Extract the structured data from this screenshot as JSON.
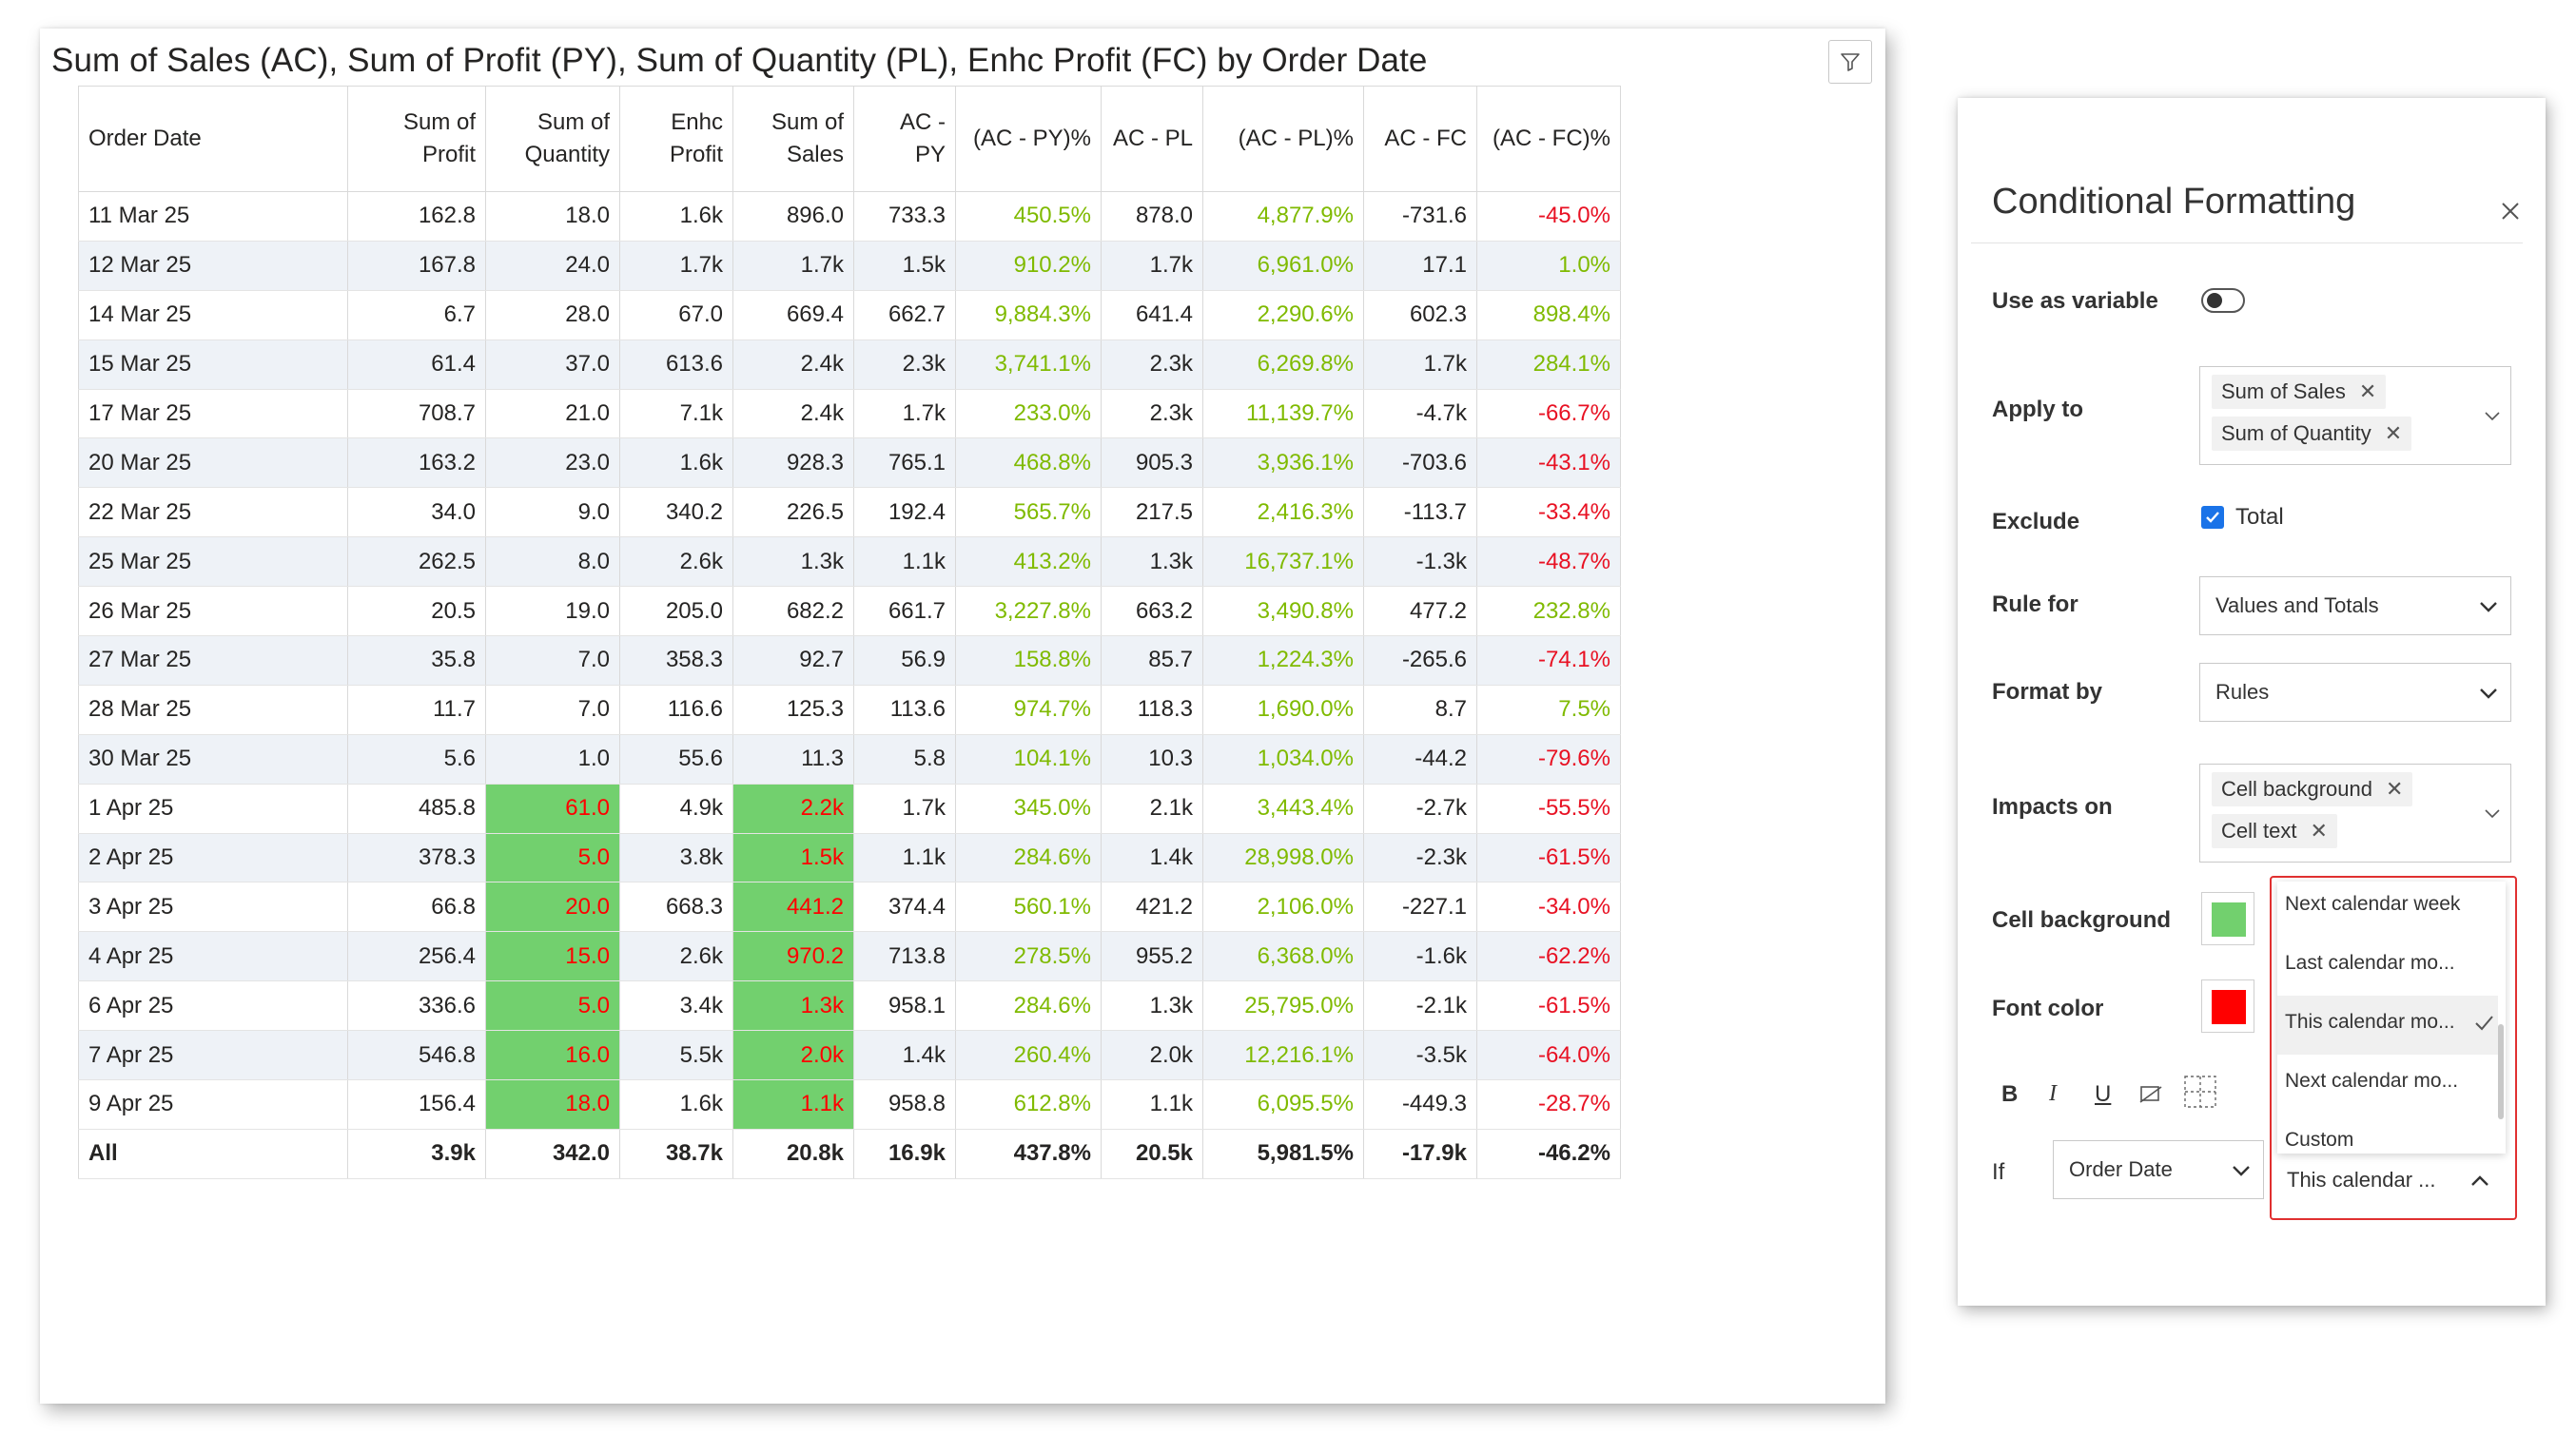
{
  "report": {
    "title": "Sum of Sales (AC), Sum of Profit (PY), Sum of Quantity (PL), Enhc Profit (FC) by Order Date",
    "filter_icon": "filter-icon",
    "columns": [
      "Order Date",
      "Sum of Profit",
      "Sum of Quantity",
      "Enhc Profit",
      "Sum of Sales",
      "AC - PY",
      "(AC - PY)%",
      "AC - PL",
      "(AC - PL)%",
      "AC - FC",
      "(AC - FC)%"
    ],
    "rows": [
      {
        "date": "11 Mar 25",
        "profit": "162.8",
        "qty": "18.0",
        "enhc": "1.6k",
        "sales": "896.0",
        "acpy": "733.3",
        "acpyp": "450.5%",
        "acpl": "878.0",
        "acplp": "4,877.9%",
        "acfc": "-731.6",
        "acfcp": "-45.0%"
      },
      {
        "date": "12 Mar 25",
        "profit": "167.8",
        "qty": "24.0",
        "enhc": "1.7k",
        "sales": "1.7k",
        "acpy": "1.5k",
        "acpyp": "910.2%",
        "acpl": "1.7k",
        "acplp": "6,961.0%",
        "acfc": "17.1",
        "acfcp": "1.0%"
      },
      {
        "date": "14 Mar 25",
        "profit": "6.7",
        "qty": "28.0",
        "enhc": "67.0",
        "sales": "669.4",
        "acpy": "662.7",
        "acpyp": "9,884.3%",
        "acpl": "641.4",
        "acplp": "2,290.6%",
        "acfc": "602.3",
        "acfcp": "898.4%"
      },
      {
        "date": "15 Mar 25",
        "profit": "61.4",
        "qty": "37.0",
        "enhc": "613.6",
        "sales": "2.4k",
        "acpy": "2.3k",
        "acpyp": "3,741.1%",
        "acpl": "2.3k",
        "acplp": "6,269.8%",
        "acfc": "1.7k",
        "acfcp": "284.1%"
      },
      {
        "date": "17 Mar 25",
        "profit": "708.7",
        "qty": "21.0",
        "enhc": "7.1k",
        "sales": "2.4k",
        "acpy": "1.7k",
        "acpyp": "233.0%",
        "acpl": "2.3k",
        "acplp": "11,139.7%",
        "acfc": "-4.7k",
        "acfcp": "-66.7%"
      },
      {
        "date": "20 Mar 25",
        "profit": "163.2",
        "qty": "23.0",
        "enhc": "1.6k",
        "sales": "928.3",
        "acpy": "765.1",
        "acpyp": "468.8%",
        "acpl": "905.3",
        "acplp": "3,936.1%",
        "acfc": "-703.6",
        "acfcp": "-43.1%"
      },
      {
        "date": "22 Mar 25",
        "profit": "34.0",
        "qty": "9.0",
        "enhc": "340.2",
        "sales": "226.5",
        "acpy": "192.4",
        "acpyp": "565.7%",
        "acpl": "217.5",
        "acplp": "2,416.3%",
        "acfc": "-113.7",
        "acfcp": "-33.4%"
      },
      {
        "date": "25 Mar 25",
        "profit": "262.5",
        "qty": "8.0",
        "enhc": "2.6k",
        "sales": "1.3k",
        "acpy": "1.1k",
        "acpyp": "413.2%",
        "acpl": "1.3k",
        "acplp": "16,737.1%",
        "acfc": "-1.3k",
        "acfcp": "-48.7%"
      },
      {
        "date": "26 Mar 25",
        "profit": "20.5",
        "qty": "19.0",
        "enhc": "205.0",
        "sales": "682.2",
        "acpy": "661.7",
        "acpyp": "3,227.8%",
        "acpl": "663.2",
        "acplp": "3,490.8%",
        "acfc": "477.2",
        "acfcp": "232.8%"
      },
      {
        "date": "27 Mar 25",
        "profit": "35.8",
        "qty": "7.0",
        "enhc": "358.3",
        "sales": "92.7",
        "acpy": "56.9",
        "acpyp": "158.8%",
        "acpl": "85.7",
        "acplp": "1,224.3%",
        "acfc": "-265.6",
        "acfcp": "-74.1%"
      },
      {
        "date": "28 Mar 25",
        "profit": "11.7",
        "qty": "7.0",
        "enhc": "116.6",
        "sales": "125.3",
        "acpy": "113.6",
        "acpyp": "974.7%",
        "acpl": "118.3",
        "acplp": "1,690.0%",
        "acfc": "8.7",
        "acfcp": "7.5%"
      },
      {
        "date": "30 Mar 25",
        "profit": "5.6",
        "qty": "1.0",
        "enhc": "55.6",
        "sales": "11.3",
        "acpy": "5.8",
        "acpyp": "104.1%",
        "acpl": "10.3",
        "acplp": "1,034.0%",
        "acfc": "-44.2",
        "acfcp": "-79.6%"
      },
      {
        "date": "1 Apr 25",
        "profit": "485.8",
        "qty": "61.0",
        "enhc": "4.9k",
        "sales": "2.2k",
        "acpy": "1.7k",
        "acpyp": "345.0%",
        "acpl": "2.1k",
        "acplp": "3,443.4%",
        "acfc": "-2.7k",
        "acfcp": "-55.5%",
        "hl": true
      },
      {
        "date": "2 Apr 25",
        "profit": "378.3",
        "qty": "5.0",
        "enhc": "3.8k",
        "sales": "1.5k",
        "acpy": "1.1k",
        "acpyp": "284.6%",
        "acpl": "1.4k",
        "acplp": "28,998.0%",
        "acfc": "-2.3k",
        "acfcp": "-61.5%",
        "hl": true
      },
      {
        "date": "3 Apr 25",
        "profit": "66.8",
        "qty": "20.0",
        "enhc": "668.3",
        "sales": "441.2",
        "acpy": "374.4",
        "acpyp": "560.1%",
        "acpl": "421.2",
        "acplp": "2,106.0%",
        "acfc": "-227.1",
        "acfcp": "-34.0%",
        "hl": true
      },
      {
        "date": "4 Apr 25",
        "profit": "256.4",
        "qty": "15.0",
        "enhc": "2.6k",
        "sales": "970.2",
        "acpy": "713.8",
        "acpyp": "278.5%",
        "acpl": "955.2",
        "acplp": "6,368.0%",
        "acfc": "-1.6k",
        "acfcp": "-62.2%",
        "hl": true
      },
      {
        "date": "6 Apr 25",
        "profit": "336.6",
        "qty": "5.0",
        "enhc": "3.4k",
        "sales": "1.3k",
        "acpy": "958.1",
        "acpyp": "284.6%",
        "acpl": "1.3k",
        "acplp": "25,795.0%",
        "acfc": "-2.1k",
        "acfcp": "-61.5%",
        "hl": true
      },
      {
        "date": "7 Apr 25",
        "profit": "546.8",
        "qty": "16.0",
        "enhc": "5.5k",
        "sales": "2.0k",
        "acpy": "1.4k",
        "acpyp": "260.4%",
        "acpl": "2.0k",
        "acplp": "12,216.1%",
        "acfc": "-3.5k",
        "acfcp": "-64.0%",
        "hl": true
      },
      {
        "date": "9 Apr 25",
        "profit": "156.4",
        "qty": "18.0",
        "enhc": "1.6k",
        "sales": "1.1k",
        "acpy": "958.8",
        "acpyp": "612.8%",
        "acpl": "1.1k",
        "acplp": "6,095.5%",
        "acfc": "-449.3",
        "acfcp": "-28.7%",
        "hl": true
      }
    ],
    "total": {
      "date": "All",
      "profit": "3.9k",
      "qty": "342.0",
      "enhc": "38.7k",
      "sales": "20.8k",
      "acpy": "16.9k",
      "acpyp": "437.8%",
      "acpl": "20.5k",
      "acplp": "5,981.5%",
      "acfc": "-17.9k",
      "acfcp": "-46.2%"
    }
  },
  "panel": {
    "title": "Conditional Formatting",
    "use_as_variable_label": "Use as variable",
    "apply_to_label": "Apply to",
    "apply_to_chips": [
      "Sum of Sales",
      "Sum of Quantity"
    ],
    "exclude_label": "Exclude",
    "exclude_option": "Total",
    "rule_for_label": "Rule for",
    "rule_for_value": "Values and Totals",
    "format_by_label": "Format by",
    "format_by_value": "Rules",
    "impacts_on_label": "Impacts on",
    "impacts_on_chips": [
      "Cell background",
      "Cell text"
    ],
    "cell_background_label": "Cell background",
    "cell_background_color": "#72d06e",
    "font_color_label": "Font color",
    "font_color": "#ff0000",
    "bold_label": "B",
    "italic_label": "I",
    "underline_label": "U",
    "if_label": "If",
    "if_field": "Order Date",
    "if_condition": "This calendar ...",
    "dropdown_options": [
      "Next calendar week",
      "Last calendar mo...",
      "This calendar mo...",
      "Next calendar mo...",
      "Custom"
    ],
    "dropdown_selected_index": 2
  },
  "colors": {
    "positive": "#7fba00",
    "negative": "#e81123",
    "highlight_bg": "#72d06e",
    "highlight_text": "#ff0000",
    "accent": "#1a73e8",
    "outline": "#e03030"
  }
}
